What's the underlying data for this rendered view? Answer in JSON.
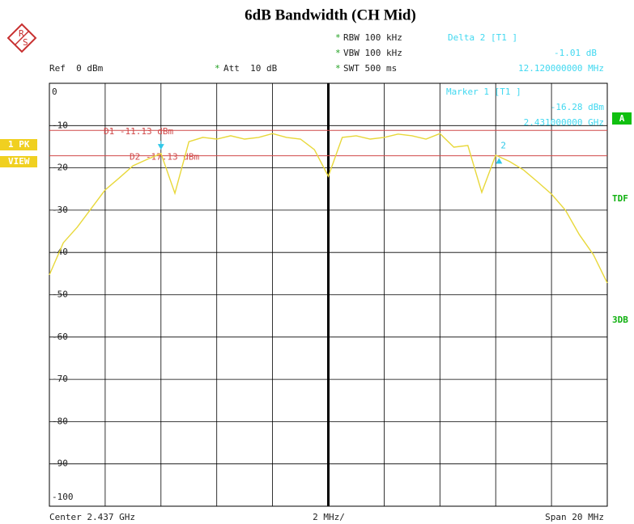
{
  "chart_data": {
    "type": "line",
    "title": "6dB Bandwidth (CH Mid)",
    "xlim": [
      2427,
      2447
    ],
    "xticks": [
      2427,
      2429,
      2431,
      2433,
      2435,
      2437,
      2439,
      2441,
      2443,
      2445,
      2447
    ],
    "ylim": [
      -100,
      0
    ],
    "yticks": [
      0,
      -10,
      -20,
      -30,
      -40,
      -50,
      -60,
      -70,
      -80,
      -90,
      -100
    ],
    "grid": true,
    "color": "#e8d83a",
    "x": [
      2427,
      2427.5,
      2428,
      2428.5,
      2429,
      2429.5,
      2430,
      2430.5,
      2431,
      2431.5,
      2432,
      2432.5,
      2433,
      2433.5,
      2434,
      2434.5,
      2435,
      2435.5,
      2436,
      2436.5,
      2437,
      2437.5,
      2438,
      2438.5,
      2439,
      2439.5,
      2440,
      2440.5,
      2441,
      2441.5,
      2442,
      2442.5,
      2443,
      2443.5,
      2444,
      2444.5,
      2445,
      2445.5,
      2446,
      2446.5,
      2447
    ],
    "values": [
      -45.3,
      -37.7,
      -34,
      -29.6,
      -25.2,
      -22.4,
      -19.5,
      -18,
      -16.6,
      -26,
      -13.8,
      -12.8,
      -13.2,
      -12.4,
      -13.2,
      -12.8,
      -11.9,
      -12.8,
      -13.2,
      -15.7,
      -22,
      -12.8,
      -12.4,
      -13.2,
      -12.8,
      -12,
      -12.4,
      -13.2,
      -11.9,
      -15.1,
      -14.7,
      -25.8,
      -17,
      -18.5,
      -20.5,
      -23.3,
      -26.2,
      -30,
      -35.8,
      -40.5,
      -47.2
    ],
    "display_lines": [
      {
        "label": "D1 -11.13 dBm",
        "value": -11.13,
        "color": "#d04848"
      },
      {
        "label": "D2 -17.13 dBm",
        "value": -17.13,
        "color": "#d04848"
      }
    ],
    "markers": [
      {
        "x": 2431,
        "y": -16.28,
        "color": "#30c8e8"
      },
      {
        "label": "2",
        "x": 2443.12,
        "y": -17.29,
        "color": "#30c8e8"
      }
    ],
    "settings": [
      "RBW 100 kHz",
      "VBW 100 kHz",
      "SWT 500 ms"
    ],
    "reference": "Ref  0 dBm",
    "attenuation": "Att  10 dB",
    "delta_readout": [
      "Delta 2 [T1 ]",
      "-1.01 dB",
      "12.120000000 MHz"
    ],
    "marker_readout": [
      "Marker 1 [T1 ]",
      "-16.28 dBm",
      "2.431000000 GHz"
    ],
    "side_labels": [
      "A",
      "TDF",
      "3DB"
    ],
    "trace_labels": [
      "1 PK",
      "VIEW"
    ],
    "footer": [
      "Center 2.437 GHz",
      "2 MHz/",
      "Span 20 MHz"
    ]
  }
}
